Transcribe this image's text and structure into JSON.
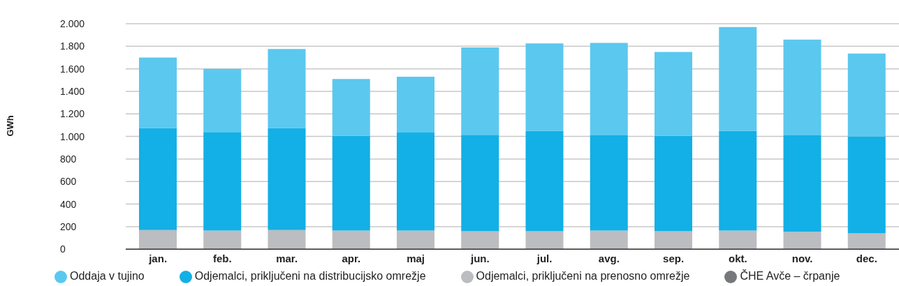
{
  "chart_data": {
    "type": "bar",
    "stacked": true,
    "ylabel": "GWh",
    "categories": [
      "jan.",
      "feb.",
      "mar.",
      "apr.",
      "maj",
      "jun.",
      "jul.",
      "avg.",
      "sep.",
      "okt.",
      "nov.",
      "dec."
    ],
    "series": [
      {
        "name": "ČHE Avče – črpanje",
        "color": "#77787b",
        "values": [
          null,
          null,
          null,
          null,
          null,
          null,
          null,
          null,
          null,
          null,
          null,
          null
        ]
      },
      {
        "name": "Odjemalci, priključeni na prenosno omrežje",
        "color": "#bcbdc0",
        "values": [
          170,
          165,
          170,
          165,
          165,
          160,
          160,
          165,
          160,
          165,
          155,
          140
        ]
      },
      {
        "name": "Odjemalci, priključeni na distribucijsko omrežje",
        "color": "#12b0e6",
        "values": [
          905,
          875,
          905,
          840,
          870,
          855,
          890,
          845,
          845,
          885,
          855,
          860
        ]
      },
      {
        "name": "Oddaja v tujino",
        "color": "#5bc8ef",
        "values": [
          625,
          560,
          700,
          505,
          495,
          775,
          775,
          820,
          745,
          920,
          850,
          735
        ]
      }
    ],
    "ylim": [
      0,
      2000
    ],
    "yticks": [
      0,
      200,
      400,
      600,
      800,
      {
        "value": 1000,
        "label": "1.000"
      },
      {
        "value": 1200,
        "label": "1.200"
      },
      {
        "value": 1400,
        "label": "1.400"
      },
      {
        "value": 1600,
        "label": "1.600"
      },
      {
        "value": 1800,
        "label": "1.800"
      },
      {
        "value": 2000,
        "label": "2.000"
      }
    ],
    "grid": "y",
    "legend": "bottom"
  }
}
